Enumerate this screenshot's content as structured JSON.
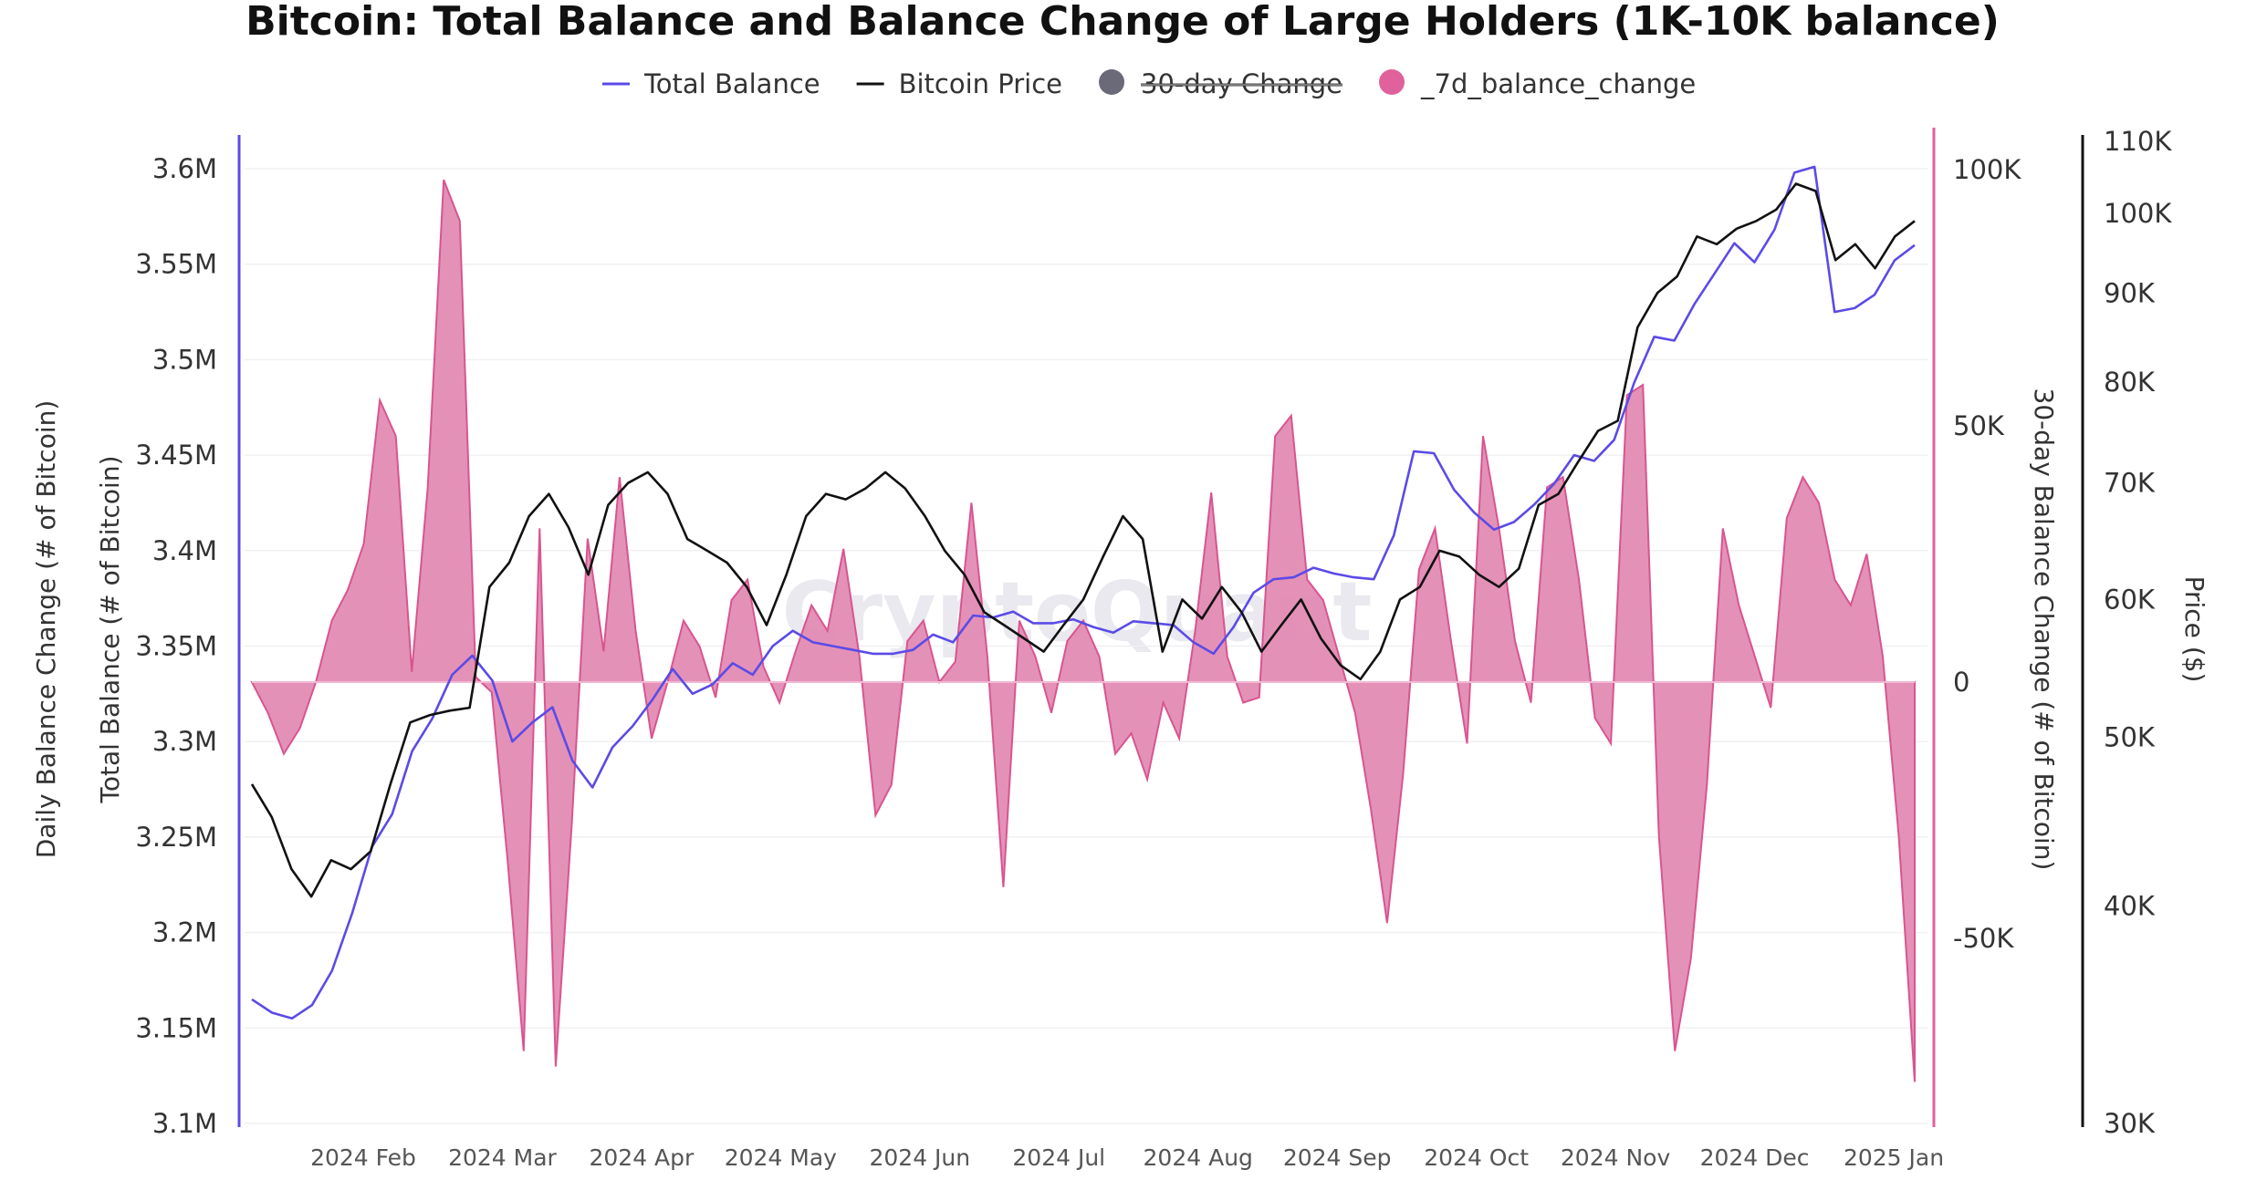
{
  "chart_data": {
    "type": "line",
    "title": "Bitcoin: Total Balance and Balance Change of Large Holders (1K-10K balance)",
    "watermark": "CryptoQuant",
    "legend": {
      "placement": "top-center",
      "items": [
        {
          "label": "Total Balance",
          "marker": "line",
          "color": "#5b4be6",
          "hidden": false
        },
        {
          "label": "Bitcoin Price",
          "marker": "line",
          "color": "#111111",
          "hidden": false
        },
        {
          "label": "30-day Change",
          "marker": "dot",
          "color": "#6a6a78",
          "hidden": true
        },
        {
          "label": "_7d_balance_change",
          "marker": "dot",
          "color": "#e0619b",
          "hidden": false
        }
      ]
    },
    "x": {
      "ticks": [
        "2024 Feb",
        "2024 Mar",
        "2024 Apr",
        "2024 May",
        "2024 Jun",
        "2024 Jul",
        "2024 Aug",
        "2024 Sep",
        "2024 Oct",
        "2024 Nov",
        "2024 Dec",
        "2025 Jan"
      ],
      "range": [
        "2024-01-09",
        "2025-01-06"
      ]
    },
    "axes": {
      "balance": {
        "title": "Total Balance (# of Bitcoin)",
        "range": [
          3100000,
          3600000
        ],
        "ticks": [
          "3.1M",
          "3.15M",
          "3.2M",
          "3.25M",
          "3.3M",
          "3.35M",
          "3.4M",
          "3.45M",
          "3.5M",
          "3.55M",
          "3.6M"
        ],
        "color": "#5b4be6"
      },
      "daily": {
        "title": "Daily Balance Change (# of Bitcoin)"
      },
      "change": {
        "title": "30-day Balance Change (# of Bitcoin)",
        "range": [
          -85000,
          100000
        ],
        "ticks": [
          "100K",
          "50K",
          "0",
          "-50K"
        ],
        "color": "#e0619b"
      },
      "price": {
        "title": "Price ($)",
        "scale": "log",
        "range": [
          30000,
          110000
        ],
        "ticks": [
          "110K",
          "100K",
          "90K",
          "80K",
          "70K",
          "60K",
          "50K",
          "40K",
          "30K"
        ],
        "color": "#111111"
      }
    },
    "grid": true,
    "series": [
      {
        "name": "Total Balance",
        "axis": "balance",
        "values": [
          3165000,
          3158000,
          3155000,
          3162000,
          3180000,
          3210000,
          3245000,
          3262000,
          3295000,
          3312000,
          3335000,
          3345000,
          3332000,
          3300000,
          3310000,
          3318000,
          3290000,
          3276000,
          3297000,
          3308000,
          3322000,
          3338000,
          3325000,
          3330000,
          3341000,
          3335000,
          3350000,
          3358000,
          3352000,
          3350000,
          3348000,
          3346000,
          3346000,
          3348000,
          3356000,
          3352000,
          3366000,
          3365000,
          3368000,
          3362000,
          3362000,
          3364000,
          3360000,
          3357000,
          3363000,
          3362000,
          3361000,
          3352000,
          3346000,
          3360000,
          3378000,
          3385000,
          3386000,
          3391000,
          3388000,
          3386000,
          3385000,
          3408000,
          3452000,
          3451000,
          3432000,
          3420000,
          3411000,
          3415000,
          3424000,
          3435000,
          3450000,
          3447000,
          3458000,
          3488000,
          3512000,
          3510000,
          3529000,
          3545000,
          3561000,
          3551000,
          3568000,
          3598000,
          3601000,
          3525000,
          3527000,
          3534000,
          3552000,
          3560000
        ]
      },
      {
        "name": "Bitcoin Price",
        "axis": "price",
        "values": [
          47000,
          45000,
          42000,
          40500,
          42500,
          42000,
          43000,
          47000,
          51000,
          51500,
          51800,
          52000,
          61000,
          63000,
          67000,
          69000,
          66000,
          62000,
          68000,
          70000,
          71000,
          69000,
          65000,
          64000,
          63000,
          61000,
          58000,
          62000,
          67000,
          69000,
          68500,
          69500,
          71000,
          69500,
          67000,
          64000,
          62000,
          59000,
          58000,
          57000,
          56000,
          58000,
          60000,
          63500,
          67000,
          65000,
          56000,
          60000,
          58500,
          61000,
          59000,
          56000,
          58000,
          60000,
          57000,
          55000,
          54000,
          56000,
          60000,
          61000,
          64000,
          63500,
          62000,
          61000,
          62500,
          68000,
          69000,
          72000,
          75000,
          76000,
          86000,
          90000,
          92000,
          97000,
          96000,
          98000,
          99000,
          100500,
          104000,
          103000,
          94000,
          96000,
          93000,
          97000,
          99000
        ]
      },
      {
        "name": "_7d_balance_change",
        "axis": "change",
        "values": [
          0,
          -6000,
          -14000,
          -9000,
          0,
          12000,
          18000,
          27000,
          55000,
          48000,
          2000,
          38000,
          98000,
          90000,
          1000,
          -2000,
          -35000,
          -72000,
          30000,
          -75000,
          -28000,
          28000,
          6000,
          40000,
          10000,
          -11000,
          0,
          12000,
          7000,
          -3000,
          16000,
          20000,
          3000,
          -4000,
          6000,
          15000,
          10000,
          26000,
          5000,
          -26000,
          -20000,
          8000,
          12000,
          0,
          4000,
          35000,
          5000,
          -40000,
          12000,
          5000,
          -6000,
          8000,
          12000,
          5000,
          -14000,
          -10000,
          -19000,
          -4000,
          -11000,
          10000,
          37000,
          5000,
          -4000,
          -3000,
          48000,
          52000,
          20000,
          16000,
          5000,
          -6000,
          -25000,
          -47000,
          -18000,
          22000,
          30000,
          8000,
          -12000,
          48000,
          30000,
          8000,
          -4000,
          38000,
          40000,
          20000,
          -7000,
          -12000,
          56000,
          58000,
          -30000,
          -72000,
          -54000,
          -20000,
          30000,
          15000,
          5000,
          -5000,
          32000,
          40000,
          35000,
          20000,
          15000,
          25000,
          5000,
          -30000,
          -78000
        ]
      }
    ]
  }
}
